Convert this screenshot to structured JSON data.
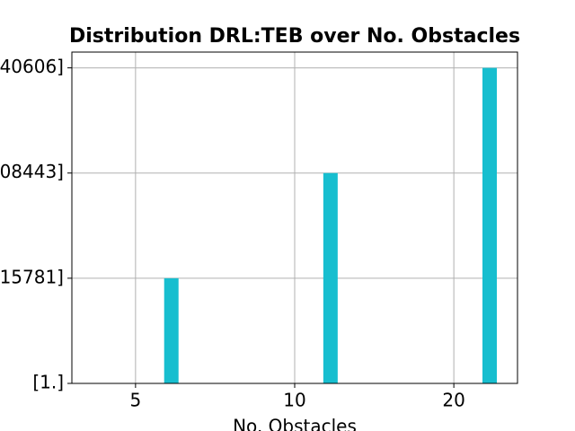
{
  "chart_data": {
    "type": "bar",
    "title": "Distribution DRL:TEB over No. Obstacles",
    "xlabel": "No. Obstacles",
    "x": [
      0.225,
      1.225,
      2.225
    ],
    "values": [
      1,
      2,
      3
    ],
    "color": "#17becf",
    "xlim": [
      -0.4,
      2.4
    ],
    "xticks": [
      {
        "value": 0,
        "label": "5"
      },
      {
        "value": 1,
        "label": "10"
      },
      {
        "value": 2,
        "label": "20"
      }
    ],
    "ylim": [
      0,
      3.15
    ],
    "yticks": [
      {
        "value": 0,
        "label": "[1.]"
      },
      {
        "value": 1,
        "label": "15781]"
      },
      {
        "value": 2,
        "label": "08443]"
      },
      {
        "value": 3,
        "label": "40606]"
      }
    ],
    "grid": true
  }
}
